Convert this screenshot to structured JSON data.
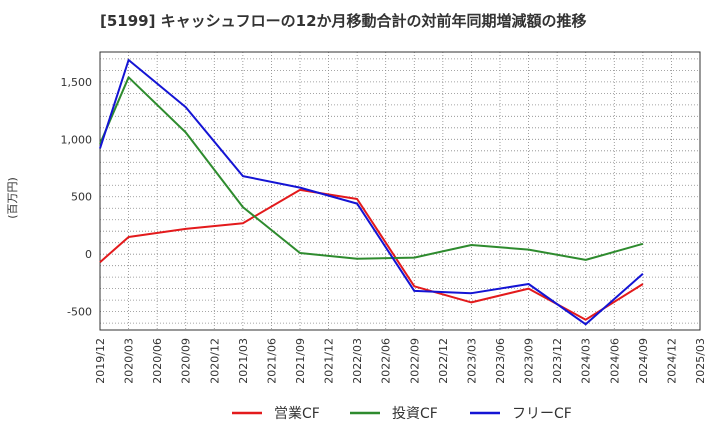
{
  "chart_data": {
    "type": "line",
    "title": "[5199]  キャッシュフローの12か月移動合計の対前年同期増減額の推移",
    "ylabel": "(百万円)",
    "xlabel": "",
    "ylim": [
      -660,
      1760
    ],
    "yticks": [
      -500,
      0,
      500,
      1000,
      1500
    ],
    "ytick_labels": [
      "-500",
      "0",
      "500",
      "1,000",
      "1,500"
    ],
    "categories": [
      "2019/12",
      "2020/03",
      "2020/06",
      "2020/09",
      "2020/12",
      "2021/03",
      "2021/06",
      "2021/09",
      "2021/12",
      "2022/03",
      "2022/06",
      "2022/09",
      "2022/12",
      "2023/03",
      "2023/06",
      "2023/09",
      "2023/12",
      "2024/03",
      "2024/06",
      "2024/09",
      "2024/12",
      "2025/03"
    ],
    "series": [
      {
        "name": "営業CF",
        "color": "#e31a1c",
        "values": [
          -70,
          150,
          null,
          220,
          null,
          270,
          null,
          560,
          null,
          480,
          null,
          -280,
          null,
          -420,
          null,
          -300,
          null,
          -570,
          null,
          -260,
          null,
          null
        ]
      },
      {
        "name": "投資CF",
        "color": "#2e8b2e",
        "values": [
          960,
          1540,
          null,
          1060,
          null,
          410,
          null,
          10,
          null,
          -40,
          null,
          -30,
          null,
          80,
          null,
          40,
          null,
          -50,
          null,
          90,
          null,
          null
        ]
      },
      {
        "name": "フリーCF",
        "color": "#1414d4",
        "values": [
          920,
          1690,
          null,
          1280,
          null,
          680,
          null,
          580,
          null,
          440,
          null,
          -320,
          null,
          -340,
          null,
          -260,
          null,
          -610,
          null,
          -170,
          null,
          null
        ]
      }
    ]
  }
}
